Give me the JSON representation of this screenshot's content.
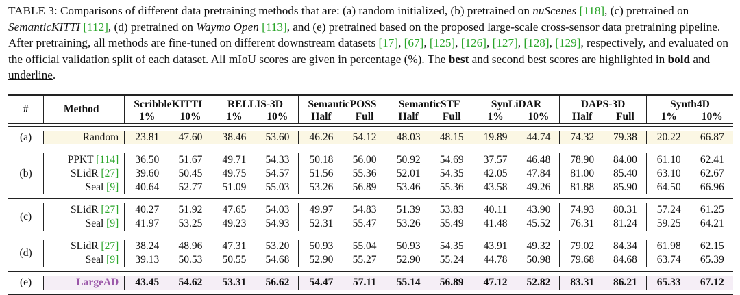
{
  "caption": {
    "p1": "TABLE 3: Comparisons of different data pretraining methods that are: (a) random initialized, (b) pretrained on ",
    "nuscenes": "nuScenes",
    "c118": "[118]",
    "p2": ", (c) pretrained on ",
    "semantickitti": "SemanticKITTI",
    "c112": "[112]",
    "p3": ", (d) pretrained on ",
    "waymo": "Waymo Open",
    "c113": "[113]",
    "p4": ", and (e) pretrained based on the proposed large-scale cross-sensor data pretraining pipeline. After pretraining, all methods are fine-tuned on different downstream datasets ",
    "c17": "[17]",
    "c67": "[67]",
    "c125": "[125]",
    "c126": "[126]",
    "c127": "[127]",
    "c128": "[128]",
    "c129": "[129]",
    "p5": ", respectively, and evaluated on the official validation split of each dataset. All mIoU scores are given in percentage (%). The ",
    "best_word": "best",
    "p6": " and ",
    "second_word": "second best",
    "p7": " scores are highlighted in ",
    "bold_word": "bold",
    "p8": " and ",
    "underline_word": "underline",
    "p9": "."
  },
  "table": {
    "col_id": "#",
    "col_method": "Method",
    "datasets": [
      {
        "name": "ScribbleKITTI",
        "sub": [
          "1%",
          "10%"
        ]
      },
      {
        "name": "RELLIS-3D",
        "sub": [
          "1%",
          "10%"
        ]
      },
      {
        "name": "SemanticPOSS",
        "sub": [
          "Half",
          "Full"
        ]
      },
      {
        "name": "SemanticSTF",
        "sub": [
          "Half",
          "Full"
        ]
      },
      {
        "name": "SynLiDAR",
        "sub": [
          "1%",
          "10%"
        ]
      },
      {
        "name": "DAPS-3D",
        "sub": [
          "Half",
          "Full"
        ]
      },
      {
        "name": "Synth4D",
        "sub": [
          "1%",
          "10%"
        ]
      }
    ],
    "groups": {
      "a": {
        "id": "(a)",
        "rows": [
          {
            "method": "Random",
            "cite": "",
            "values": [
              "23.81",
              "47.60",
              "38.46",
              "53.60",
              "46.26",
              "54.12",
              "48.03",
              "48.15",
              "19.89",
              "44.74",
              "74.32",
              "79.38",
              "20.22",
              "66.87"
            ]
          }
        ]
      },
      "b": {
        "id": "(b)",
        "rows": [
          {
            "method": "PPKT",
            "cite": "[114]",
            "values": [
              "36.50",
              "51.67",
              "49.71",
              "54.33",
              "50.18",
              "56.00",
              "50.92",
              "54.69",
              "37.57",
              "46.48",
              "78.90",
              "84.00",
              "61.10",
              "62.41"
            ]
          },
          {
            "method": "SLidR",
            "cite": "[27]",
            "values": [
              "39.60",
              "50.45",
              "49.75",
              "54.57",
              "51.56",
              "55.36",
              "52.01",
              "54.35",
              "42.05",
              "47.84",
              "81.00",
              "85.40",
              "63.10",
              "62.67"
            ]
          },
          {
            "method": "Seal",
            "cite": "[9]",
            "values": [
              "40.64",
              "52.77",
              "51.09",
              "55.03",
              "53.26",
              "56.89",
              "53.46",
              "55.36",
              "43.58",
              "49.26",
              "81.88",
              "85.90",
              "64.50",
              "66.96"
            ]
          }
        ]
      },
      "c": {
        "id": "(c)",
        "rows": [
          {
            "method": "SLidR",
            "cite": "[27]",
            "values": [
              "40.27",
              "51.92",
              "47.65",
              "54.03",
              "49.97",
              "54.83",
              "51.39",
              "53.83",
              "40.11",
              "43.90",
              "74.93",
              "80.31",
              "57.24",
              "61.25"
            ]
          },
          {
            "method": "Seal",
            "cite": "[9]",
            "values": [
              "41.97",
              "53.25",
              "49.23",
              "54.93",
              "52.31",
              "55.47",
              "53.26",
              "55.49",
              "41.48",
              "45.52",
              "76.31",
              "81.24",
              "59.25",
              "64.21"
            ]
          }
        ]
      },
      "d": {
        "id": "(d)",
        "rows": [
          {
            "method": "SLidR",
            "cite": "[27]",
            "values": [
              "38.24",
              "48.96",
              "47.31",
              "53.20",
              "50.93",
              "55.04",
              "50.93",
              "54.35",
              "43.91",
              "49.32",
              "79.02",
              "84.34",
              "61.98",
              "62.15"
            ]
          },
          {
            "method": "Seal",
            "cite": "[9]",
            "values": [
              "39.13",
              "50.53",
              "50.55",
              "54.68",
              "52.90",
              "55.27",
              "52.90",
              "55.24",
              "44.78",
              "50.98",
              "79.68",
              "84.68",
              "63.74",
              "65.39"
            ]
          }
        ]
      },
      "e": {
        "id": "(e)",
        "rows": [
          {
            "method": "LargeAD",
            "cite": "",
            "values": [
              "43.45",
              "54.62",
              "53.31",
              "56.62",
              "54.47",
              "57.11",
              "55.14",
              "56.89",
              "47.12",
              "52.82",
              "83.31",
              "86.21",
              "65.33",
              "67.12"
            ]
          }
        ]
      }
    }
  }
}
